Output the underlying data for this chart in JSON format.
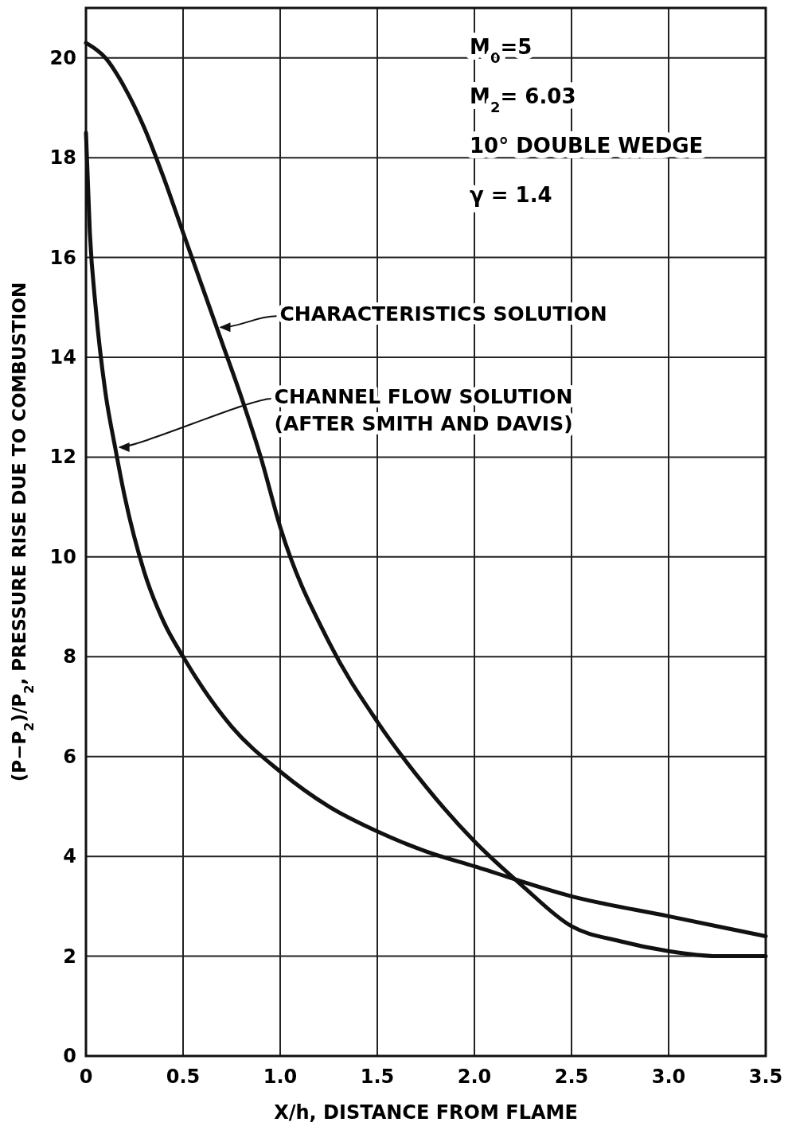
{
  "chart_data": {
    "type": "line",
    "xlabel": "X/h, DISTANCE FROM FLAME",
    "ylabel": "(P−P$_{2}$)/P$_{2}$, PRESSURE RISE DUE TO COMBUSTION",
    "xlim": [
      0,
      3.5
    ],
    "ylim": [
      0,
      21
    ],
    "xticks": [
      0,
      0.5,
      {
        "value": 1,
        "label": "1.0"
      },
      1.5,
      {
        "value": 2,
        "label": "2.0"
      },
      2.5,
      {
        "value": 3,
        "label": "3.0"
      },
      3.5
    ],
    "yticks": [
      0,
      2,
      4,
      6,
      8,
      10,
      12,
      14,
      16,
      18,
      20
    ],
    "grid": true,
    "marker": "none",
    "line_style": "solid",
    "series": [
      {
        "color": "#111111",
        "x": [
          0,
          0.1,
          0.2,
          0.3,
          0.4,
          0.5,
          0.6,
          0.7,
          0.8,
          0.9,
          1.0,
          1.25,
          1.5,
          1.75,
          2.0,
          2.25,
          2.5,
          2.75,
          3.0,
          3.25,
          3.5
        ],
        "values": [
          20.3,
          20.0,
          19.4,
          18.6,
          17.6,
          16.5,
          15.4,
          14.3,
          13.2,
          12.0,
          10.6,
          8.3,
          6.7,
          5.4,
          4.3,
          3.4,
          2.6,
          2.3,
          2.1,
          2.0,
          2.0
        ]
      },
      {
        "color": "#111111",
        "x": [
          0,
          0.02,
          0.05,
          0.1,
          0.15,
          0.2,
          0.3,
          0.4,
          0.5,
          0.75,
          1.0,
          1.25,
          1.5,
          1.75,
          2.0,
          2.5,
          3.0,
          3.5
        ],
        "values": [
          18.5,
          16.5,
          15.0,
          13.3,
          12.2,
          11.2,
          9.7,
          8.7,
          8.0,
          6.6,
          5.7,
          5.0,
          4.5,
          4.1,
          3.8,
          3.2,
          2.8,
          2.4
        ]
      }
    ],
    "annotations": [
      "M$_{0}$=5",
      "M$_{2}$= 6.03",
      "10° DOUBLE WEDGE",
      "γ = 1.4",
      {
        "text": "CHARACTERISTICS SOLUTION",
        "x": 0.67,
        "y": 14.6
      },
      {
        "text": "CHANNEL FLOW SOLUTION\n(AFTER SMITH AND DAVIS)",
        "x": 0.15,
        "y": 12.2
      }
    ]
  }
}
